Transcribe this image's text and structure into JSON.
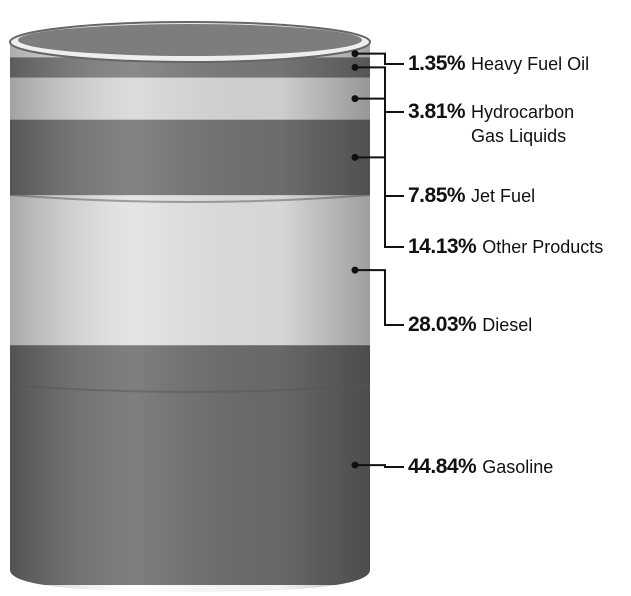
{
  "chart_data": {
    "type": "barrel",
    "categories": [
      "Heavy Fuel Oil",
      "Hydrocarbon Gas Liquids",
      "Jet Fuel",
      "Other Products",
      "Diesel",
      "Gasoline"
    ],
    "values": [
      1.35,
      3.81,
      7.85,
      14.13,
      28.03,
      44.84
    ],
    "value_labels": [
      "1.35%",
      "3.81%",
      "7.85%",
      "14.13%",
      "28.03%",
      "44.84%"
    ],
    "colors": [
      "#e6e6e6",
      "#7a7a7a",
      "#d8d8d8",
      "#727272",
      "#e2e2e2",
      "#6d6d6d"
    ]
  }
}
